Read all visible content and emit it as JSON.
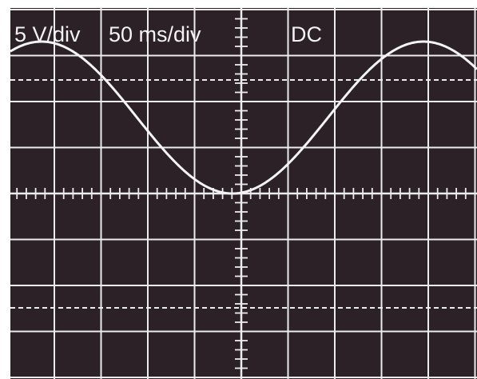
{
  "screen": {
    "volts_per_div": "5 V/div",
    "time_per_div": "50 ms/div",
    "coupling": "DC"
  }
}
